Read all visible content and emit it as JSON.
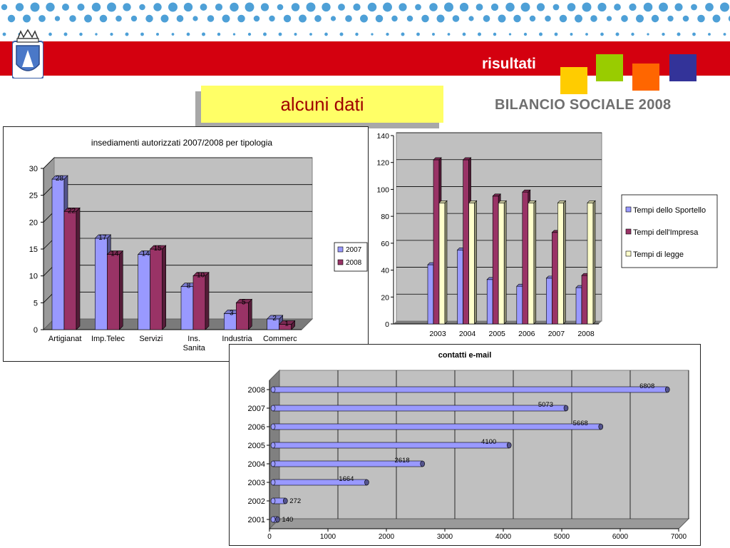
{
  "header": {
    "title": "risultati",
    "subtitle": "BILANCIO SOCIALE 2008",
    "banner": "alcuni dati"
  },
  "colors": {
    "red": "#d4000f",
    "blue_dots": "#2f8fd0",
    "sq_yellow": "#ffcc00",
    "sq_green": "#99cc00",
    "sq_orange": "#ff6600",
    "sq_navy": "#333399"
  },
  "chart_data": [
    {
      "type": "bar",
      "title": "insediamenti autorizzati 2007/2008 per tipologia",
      "categories": [
        "Artigianat",
        "Imp.Telec",
        "Servizi",
        "Ins.\nSanita",
        "Industria",
        "Commerc"
      ],
      "series": [
        {
          "name": "2007",
          "values": [
            28,
            17,
            14,
            8,
            3,
            2
          ],
          "color": "#9999ff"
        },
        {
          "name": "2008",
          "values": [
            22,
            14,
            15,
            10,
            5,
            1
          ],
          "color": "#993366"
        }
      ],
      "ylim": [
        0,
        30
      ],
      "yticks": [
        0,
        5,
        10,
        15,
        20,
        25,
        30
      ],
      "grid": true,
      "legend": "right"
    },
    {
      "type": "bar",
      "title": "",
      "categories": [
        "2003",
        "2004",
        "2005",
        "2006",
        "2007",
        "2008"
      ],
      "series": [
        {
          "name": "Tempi dello Sportello",
          "values": [
            44,
            55,
            33,
            28,
            34,
            27
          ],
          "color": "#9999ff"
        },
        {
          "name": "Tempi dell'Impresa",
          "values": [
            122,
            122,
            95,
            98,
            68,
            36
          ],
          "color": "#993366"
        },
        {
          "name": "Tempi di legge",
          "values": [
            90,
            90,
            90,
            90,
            90,
            90
          ],
          "color": "#ffffcc"
        }
      ],
      "ylim": [
        0,
        140
      ],
      "yticks": [
        0,
        20,
        40,
        60,
        80,
        100,
        120,
        140
      ],
      "grid": true,
      "legend": "right"
    },
    {
      "type": "bar",
      "orientation": "horizontal",
      "title": "contatti e-mail",
      "categories": [
        "2001",
        "2002",
        "2003",
        "2004",
        "2005",
        "2006",
        "2007",
        "2008"
      ],
      "values": [
        140,
        272,
        1664,
        2618,
        4100,
        5668,
        5073,
        6808
      ],
      "color": "#9999ff",
      "xlim": [
        0,
        7000
      ],
      "xticks": [
        0,
        1000,
        2000,
        3000,
        4000,
        5000,
        6000,
        7000
      ],
      "grid": true
    }
  ]
}
